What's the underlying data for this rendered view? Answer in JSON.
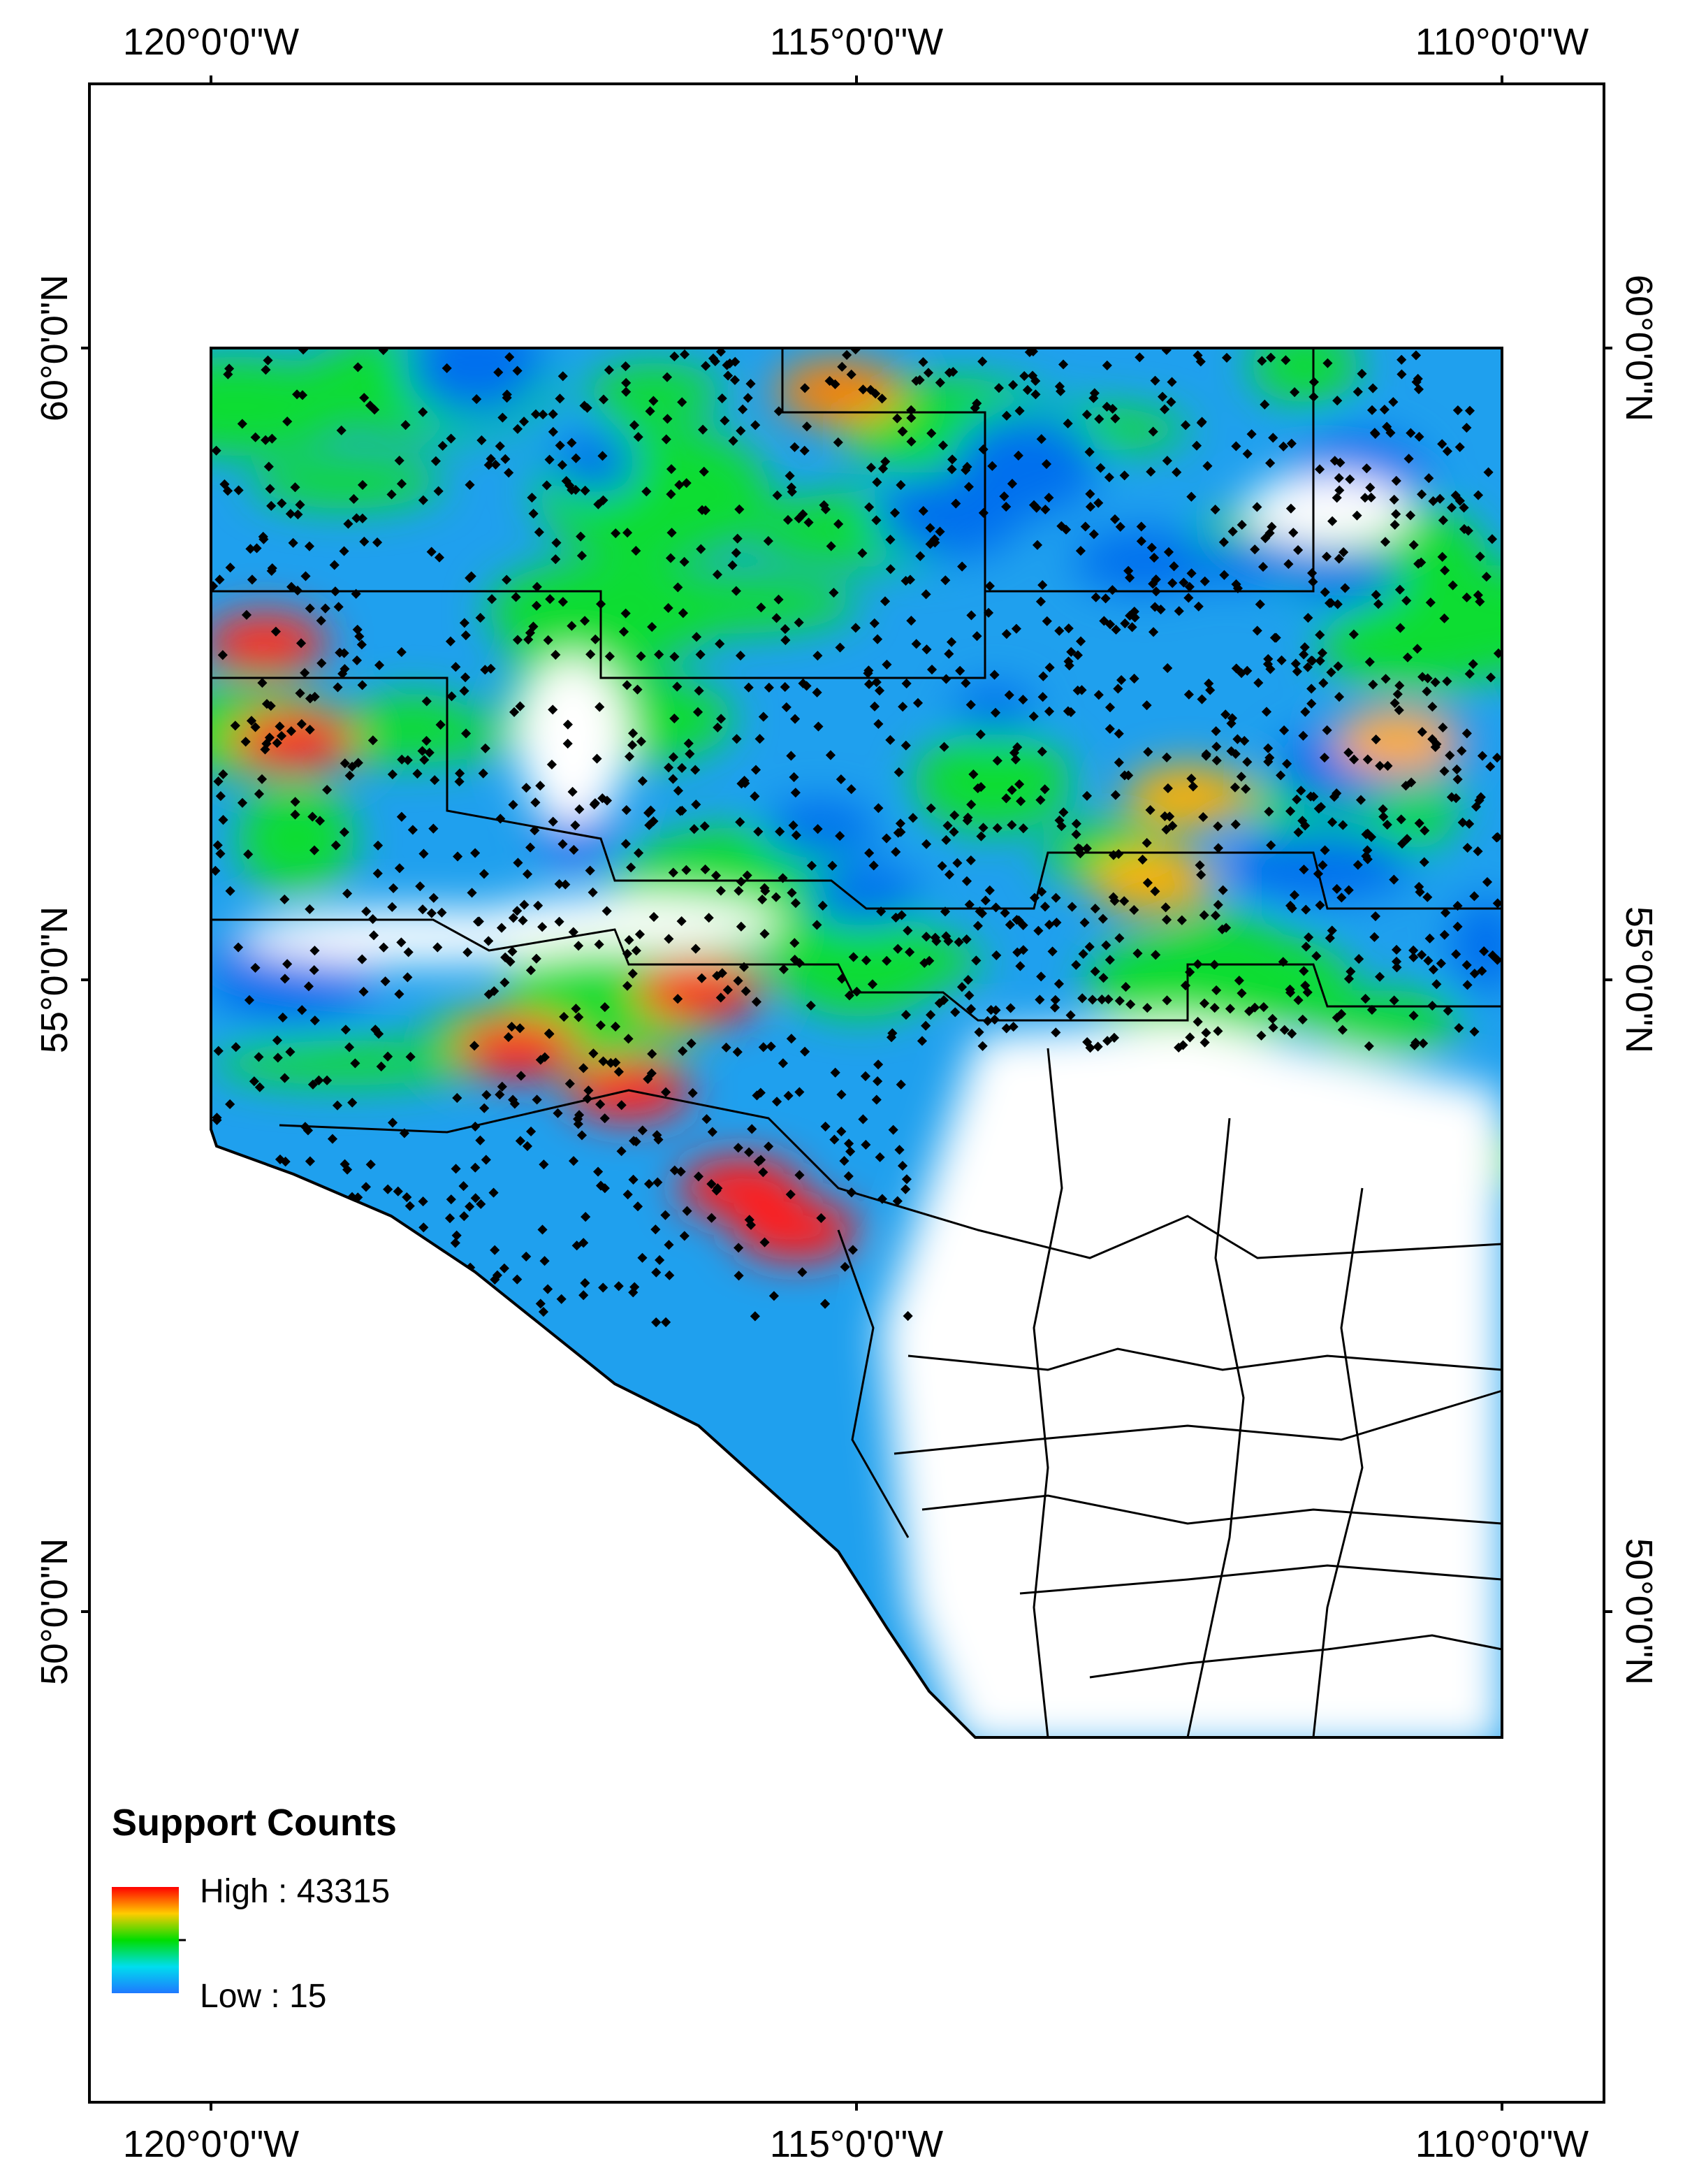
{
  "legend": {
    "title": "Support Counts",
    "high": "High : 43315",
    "low": "Low : 15"
  },
  "axes": {
    "top": [
      "120°0'0\"W",
      "115°0'0\"W",
      "110°0'0\"W"
    ],
    "bottom": [
      "120°0'0\"W",
      "115°0'0\"W",
      "110°0'0\"W"
    ],
    "left": [
      "60°0'0\"N",
      "55°0'0\"N",
      "50°0'0\"N"
    ],
    "right": [
      "60°0'0\"N",
      "55°0'0\"N",
      "50°0'0\"N"
    ]
  }
}
